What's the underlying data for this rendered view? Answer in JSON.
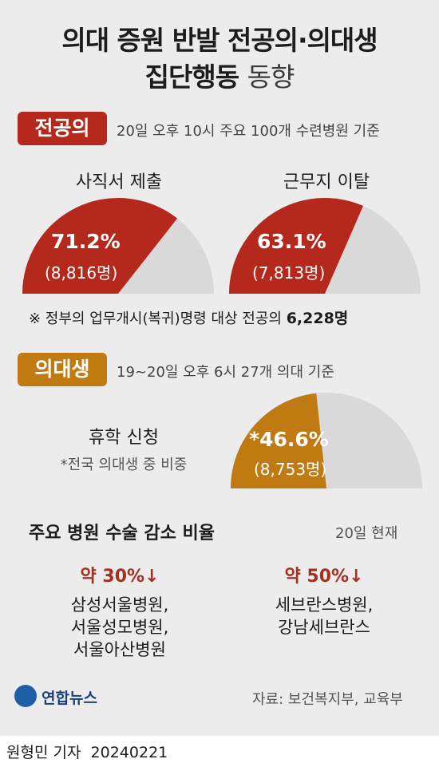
{
  "title": {
    "line1": "의대 증원 반발 전공의·의대생",
    "line2_bold": "집단행동",
    "line2_light": "동향"
  },
  "residents": {
    "tag": "전공의",
    "tag_color": "#b5281c",
    "basis": "20일 오후 10시 주요 100개 수련병원 기준",
    "resignation": {
      "label": "사직서 제출",
      "percent_text": "71.2%",
      "count_text": "(8,816명)"
    },
    "departure": {
      "label": "근무지 이탈",
      "percent_text": "63.1%",
      "count_text": "(7,813명)"
    },
    "note_prefix": "※ 정부의 업무개시(복귀)명령 대상 전공의 ",
    "note_value": "6,228명"
  },
  "students": {
    "tag": "의대생",
    "tag_color": "#c07a12",
    "basis": "19~20일 오후 6시 27개 의대 기준",
    "leave_label": "휴학 신청",
    "leave_sublabel": "*전국 의대생 중 비중",
    "percent_text": "*46.6%",
    "count_text": "(8,753명)"
  },
  "surgery": {
    "title": "주요 병원 수술 감소 비율",
    "date": "20일 현재",
    "groups": [
      {
        "rate": "약 30%↓",
        "hospitals": [
          "삼성서울병원,",
          "서울성모병원,",
          "서울아산병원"
        ]
      },
      {
        "rate": "약 50%↓",
        "hospitals": [
          "세브란스병원,",
          "강남세브란스"
        ]
      }
    ]
  },
  "logo_text": "연합뉴스",
  "source": "자료: 보건복지부, 교육부",
  "byline": {
    "reporter": "원형민 기자",
    "date": "20240221"
  },
  "chart_data": [
    {
      "type": "pie",
      "categories": [
        "사직서 제출",
        ""
      ],
      "values": [
        71.2,
        28.8
      ],
      "colors": [
        "#b5281c",
        "#d9d9d9"
      ]
    },
    {
      "type": "pie",
      "categories": [
        "근무지 이탈",
        ""
      ],
      "values": [
        63.1,
        36.9
      ],
      "colors": [
        "#b5281c",
        "#d9d9d9"
      ]
    },
    {
      "type": "pie",
      "categories": [
        "휴학 신청",
        ""
      ],
      "values": [
        46.6,
        53.4
      ],
      "colors": [
        "#c07a12",
        "#d9d9d9"
      ]
    }
  ]
}
